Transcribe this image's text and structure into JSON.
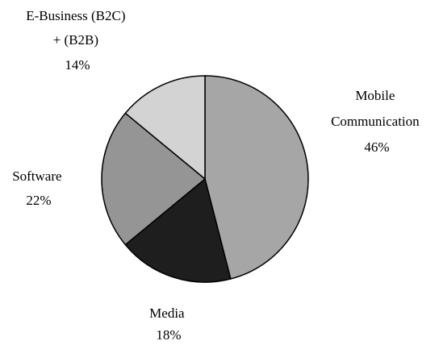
{
  "chart_data": {
    "type": "pie",
    "start": "12 o'clock",
    "direction": "clockwise",
    "slices": [
      {
        "name": "Mobile Communication",
        "label_lines": [
          "Mobile",
          "Communication"
        ],
        "value": 46,
        "value_label": "46%",
        "color": "#a6a6a6"
      },
      {
        "name": "Media",
        "label_lines": [
          "Media"
        ],
        "value": 18,
        "value_label": "18%",
        "color": "#1e1e1e"
      },
      {
        "name": "Software",
        "label_lines": [
          "Software"
        ],
        "value": 22,
        "value_label": "22%",
        "color": "#959595"
      },
      {
        "name": "E-Business (B2C) + (B2B)",
        "label_lines": [
          "E-Business (B2C)",
          "+ (B2B)"
        ],
        "value": 14,
        "value_label": "14%",
        "color": "#d3d3d3"
      }
    ],
    "slice_border_color": "#000000"
  }
}
